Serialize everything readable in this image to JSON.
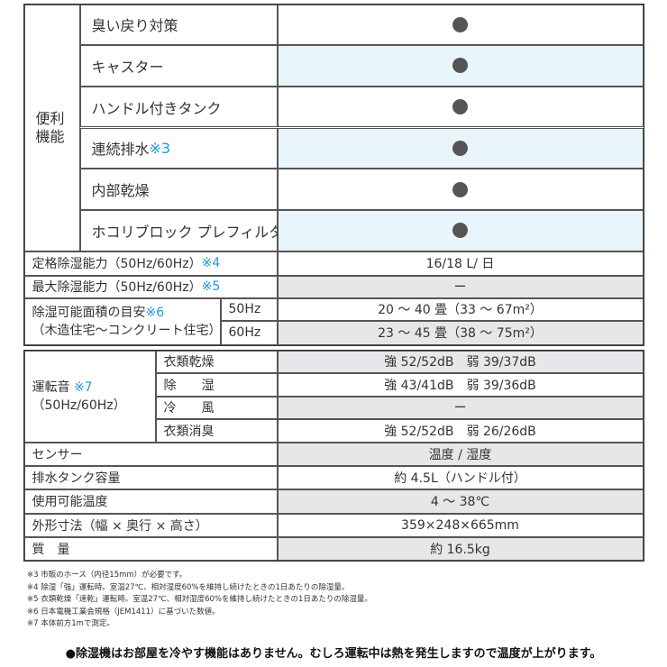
{
  "features": {
    "group_label_1": "便利",
    "group_label_2": "機能",
    "dot_icon": "filled-circle",
    "items": [
      {
        "label": "臭い戻り対策",
        "note": ""
      },
      {
        "label": "キャスター",
        "note": ""
      },
      {
        "label": "ハンドル付きタンク",
        "note": ""
      },
      {
        "label": "連続排水",
        "note": "※3"
      },
      {
        "label": "内部乾燥",
        "note": ""
      },
      {
        "label": "ホコリブロック プレフィルター",
        "note": ""
      }
    ]
  },
  "specs": {
    "rated": {
      "label": "定格除湿能力（50Hz/60Hz）",
      "note": "※4",
      "value": "16/18 L/ 日"
    },
    "max": {
      "label": "最大除湿能力（50Hz/60Hz）",
      "note": "※5",
      "value": "ー"
    },
    "area": {
      "label1": "除湿可能面積の目安",
      "note": "※6",
      "label2": "（木造住宅〜コンクリート住宅）",
      "rows": [
        {
          "hz": "50Hz",
          "value": "20 ～ 40 畳（33 ～ 67m²）"
        },
        {
          "hz": "60Hz",
          "value": "23 ～ 45 畳（38 ～ 75m²）"
        }
      ]
    },
    "noise": {
      "label1": "運転音",
      "note": "※7",
      "label2": "（50Hz/60Hz）",
      "rows": [
        {
          "mode": "衣類乾燥",
          "value": "強 52/52dB　弱 39/37dB"
        },
        {
          "mode": "除　　湿",
          "value": "強 43/41dB　弱 39/36dB"
        },
        {
          "mode": "冷　　風",
          "value": "ー"
        },
        {
          "mode": "衣類消臭",
          "value": "強 52/52dB　弱 26/26dB"
        }
      ]
    },
    "others": [
      {
        "label": "センサー",
        "value": "温度 / 湿度"
      },
      {
        "label": "排水タンク容量",
        "value": "約 4.5L（ハンドル付）"
      },
      {
        "label": "使用可能温度",
        "value": "4 ～ 38℃"
      },
      {
        "label": "外形寸法（幅 × 奥行 × 高さ）",
        "value": "359×248×665mm"
      },
      {
        "label": "質　量",
        "value": "約 16.5kg"
      }
    ]
  },
  "footnotes": [
    "※3 市販のホース（内径15mm）が必要です。",
    "※4 除湿「強」運転時。室温27℃、相対湿度60%を維持し続けたときの1日あたりの除湿量。",
    "※5 衣類乾燥「速乾」運転時。室温27℃、相対湿度60%を維持し続けたときの1日あたりの除湿量。",
    "※6 日本電機工業会規格（JEM1411）に基づいた数値。",
    "※7 本体前方1mで測定。"
  ],
  "warning": "●除湿機はお部屋を冷やす機能はありません。むしろ運転中は熱を発生しますので温度が上がります。",
  "colors": {
    "note": "#1a9ad6",
    "blue_row": "#e8f6fc",
    "grey_row": "#e6e7e9",
    "dot": "#555555"
  }
}
